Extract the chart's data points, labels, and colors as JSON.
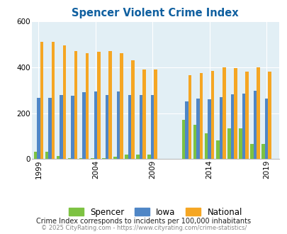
{
  "title": "Spencer Violent Crime Index",
  "title_color": "#1060a0",
  "subtitle": "Crime Index corresponds to incidents per 100,000 inhabitants",
  "footer": "© 2025 CityRating.com - https://www.cityrating.com/crime-statistics/",
  "color_spencer": "#7dc242",
  "color_iowa": "#4f86c6",
  "color_national": "#f5a623",
  "bg_color": "#e2eff5",
  "ylim": [
    0,
    600
  ],
  "yticks": [
    0,
    200,
    400,
    600
  ],
  "xtick_years": [
    1999,
    2004,
    2009,
    2014,
    2019
  ],
  "bar_width": 0.28,
  "figsize": [
    4.06,
    3.3
  ],
  "dpi": 100,
  "years": [
    1999,
    2000,
    2001,
    2002,
    2003,
    2004,
    2005,
    2006,
    2007,
    2008,
    2009,
    2012,
    2013,
    2014,
    2015,
    2016,
    2017,
    2018,
    2019
  ],
  "spencer": [
    32,
    32,
    15,
    5,
    5,
    5,
    5,
    10,
    20,
    20,
    20,
    170,
    148,
    113,
    82,
    133,
    133,
    65,
    65
  ],
  "iowa": [
    265,
    265,
    280,
    275,
    290,
    295,
    280,
    295,
    280,
    280,
    280,
    250,
    263,
    260,
    268,
    283,
    285,
    298,
    262
  ],
  "national": [
    510,
    510,
    495,
    470,
    460,
    468,
    470,
    460,
    430,
    390,
    390,
    365,
    375,
    383,
    398,
    397,
    381,
    400,
    381
  ]
}
